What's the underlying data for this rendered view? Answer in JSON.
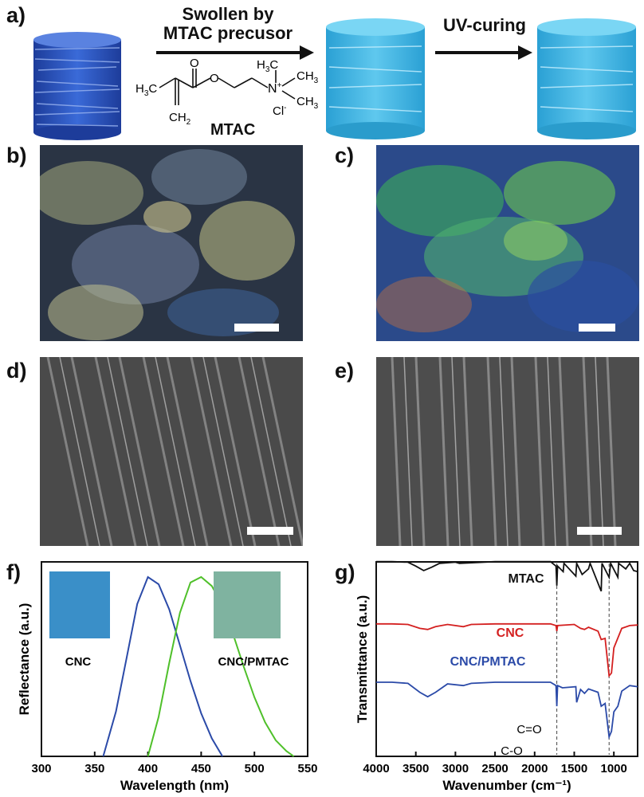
{
  "panel_labels": {
    "a": "a)",
    "b": "b)",
    "c": "c)",
    "d": "d)",
    "e": "e)",
    "f": "f)",
    "g": "g)"
  },
  "panel_a": {
    "step1": [
      "Swollen by",
      "MTAC precusor"
    ],
    "step2": "UV-curing",
    "molecule_name": "MTAC",
    "structure_labels": {
      "h3c": "H3C",
      "o_carbonyl": "O",
      "o_ester": "O",
      "ch3_top": "H3C",
      "ch3_right": "CH3",
      "ch3_bottom": "CH3",
      "n_plus": "N+",
      "cl_minus": "Cl-",
      "ch2": "CH2"
    },
    "colors": {
      "dark_cylinder": "#2a56c8",
      "light_cylinder": "#36b2e0"
    }
  },
  "panel_b": {
    "colors": [
      "#1d2a3a",
      "#7c8a6a",
      "#c8c68a",
      "#3a5a80"
    ]
  },
  "panel_c": {
    "colors": [
      "#2b4fa0",
      "#3aa060",
      "#7fcf50",
      "#c07040"
    ]
  },
  "panel_f": {
    "ylabel": "Reflectance (a.u.)",
    "xlabel": "Wavelength (nm)",
    "inset_left_label": "CNC",
    "inset_right_label": "CNC/PMTAC",
    "inset_left_color": "#3a8fc8",
    "inset_right_color": "#7fb3a0"
  },
  "panel_g": {
    "ylabel": "Transmittance (a.u.)",
    "xlabel": "Wavenumber (cm⁻¹)",
    "annotations": [
      "C=O",
      "C-O"
    ]
  },
  "chart_data": [
    {
      "type": "line",
      "panel": "f",
      "xlabel": "Wavelength (nm)",
      "ylabel": "Reflectance (a.u.)",
      "xlim": [
        300,
        550
      ],
      "xticks": [
        300,
        350,
        400,
        450,
        500,
        550
      ],
      "series": [
        {
          "name": "CNC",
          "color": "#2b4aa8",
          "x": [
            358,
            370,
            380,
            390,
            400,
            410,
            420,
            430,
            440,
            450,
            460,
            470
          ],
          "y": [
            0.0,
            0.25,
            0.55,
            0.85,
            1.0,
            0.96,
            0.82,
            0.62,
            0.42,
            0.24,
            0.1,
            0.0
          ]
        },
        {
          "name": "CNC/PMTAC",
          "color": "#4fc02a",
          "x": [
            400,
            410,
            420,
            430,
            440,
            450,
            460,
            470,
            480,
            490,
            500,
            510,
            520,
            530,
            537
          ],
          "y": [
            0.0,
            0.22,
            0.52,
            0.8,
            0.97,
            1.0,
            0.95,
            0.84,
            0.68,
            0.5,
            0.33,
            0.19,
            0.09,
            0.03,
            0.0
          ]
        }
      ]
    },
    {
      "type": "line",
      "panel": "g",
      "xlabel": "Wavenumber (cm⁻¹)",
      "ylabel": "Transmittance (a.u.)",
      "xlim": [
        4000,
        700
      ],
      "xticks": [
        4000,
        3500,
        3000,
        2500,
        2000,
        1500,
        1000
      ],
      "reference_lines": [
        1720,
        1060
      ],
      "series": [
        {
          "name": "MTAC",
          "color": "#111111",
          "offset": 0.72,
          "x": [
            4000,
            3800,
            3600,
            3500,
            3400,
            3300,
            3200,
            3000,
            2950,
            2500,
            2000,
            1800,
            1730,
            1720,
            1710,
            1640,
            1630,
            1480,
            1470,
            1400,
            1320,
            1300,
            1160,
            1150,
            1060,
            1040,
            950,
            940,
            850,
            800,
            750,
            700
          ],
          "y": [
            0.98,
            0.98,
            0.97,
            0.9,
            0.82,
            0.88,
            0.95,
            0.97,
            0.95,
            0.98,
            0.98,
            0.98,
            0.9,
            0.55,
            0.9,
            0.8,
            0.95,
            0.72,
            0.95,
            0.75,
            0.85,
            0.95,
            0.45,
            0.95,
            0.7,
            0.95,
            0.7,
            0.95,
            0.85,
            0.95,
            0.82,
            0.8
          ]
        },
        {
          "name": "CNC",
          "color": "#d42020",
          "offset": 0.4,
          "x": [
            4000,
            3800,
            3600,
            3450,
            3350,
            3250,
            3100,
            2900,
            2800,
            2500,
            2000,
            1800,
            1730,
            1720,
            1710,
            1500,
            1420,
            1370,
            1320,
            1200,
            1160,
            1110,
            1060,
            1030,
            1000,
            900,
            800,
            700
          ],
          "y": [
            0.98,
            0.98,
            0.97,
            0.9,
            0.88,
            0.93,
            0.97,
            0.93,
            0.97,
            0.98,
            0.98,
            0.98,
            0.95,
            0.85,
            0.95,
            0.97,
            0.9,
            0.88,
            0.92,
            0.85,
            0.7,
            0.72,
            0.05,
            0.1,
            0.55,
            0.9,
            0.95,
            0.96
          ]
        },
        {
          "name": "CNC/PMTAC",
          "color": "#2b4aa8",
          "offset": 0.1,
          "x": [
            4000,
            3800,
            3600,
            3450,
            3350,
            3250,
            3100,
            2900,
            2800,
            2500,
            2000,
            1800,
            1730,
            1720,
            1710,
            1650,
            1480,
            1470,
            1420,
            1370,
            1320,
            1200,
            1160,
            1110,
            1060,
            1030,
            1000,
            950,
            900,
            800,
            700
          ],
          "y": [
            0.98,
            0.98,
            0.96,
            0.8,
            0.72,
            0.8,
            0.95,
            0.92,
            0.96,
            0.98,
            0.98,
            0.98,
            0.92,
            0.55,
            0.92,
            0.88,
            0.9,
            0.62,
            0.85,
            0.78,
            0.86,
            0.8,
            0.55,
            0.6,
            0.0,
            0.1,
            0.45,
            0.55,
            0.82,
            0.92,
            0.9
          ]
        }
      ]
    }
  ]
}
